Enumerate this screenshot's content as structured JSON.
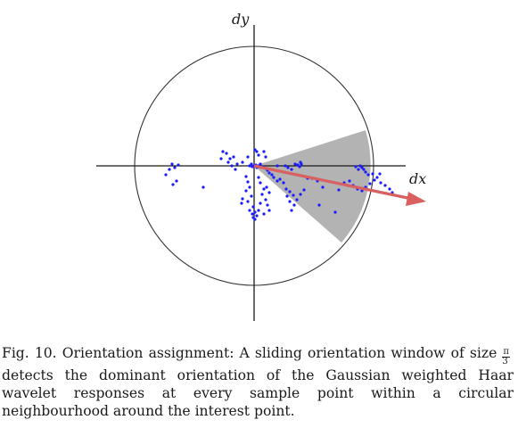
{
  "figure": {
    "axis_labels": {
      "x": "dx",
      "y": "dy"
    },
    "colors": {
      "points": "#1a1aff",
      "window": "#b3b3b3",
      "arrow": "#d96060",
      "lines": "#1a1a1a"
    }
  },
  "caption": {
    "label": "Fig. 10.",
    "text_before": " Orientation assignment: A sliding orientation window of size ",
    "fraction": {
      "numerator": "π",
      "denominator": "3"
    },
    "text_after": "detects the dominant orientation of the Gaussian weighted Haar wavelet responses at every sample point within a circular neighbourhood around the interest point."
  }
}
